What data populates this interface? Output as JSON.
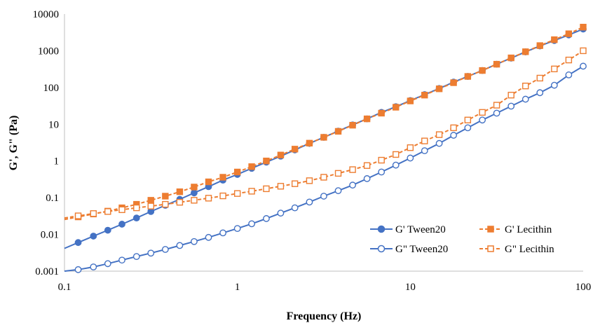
{
  "chart_data": {
    "type": "line",
    "xlabel": "Frequency (Hz)",
    "ylabel": "G', G\" (Pa)",
    "x_scale": "log",
    "y_scale": "log",
    "xlim": [
      0.1,
      100
    ],
    "ylim": [
      0.001,
      10000
    ],
    "x_ticks": [
      "0.1",
      "1",
      "10",
      "100"
    ],
    "y_ticks": [
      "0.001",
      "0.01",
      "0.1",
      "1",
      "10",
      "100",
      "1000",
      "10000"
    ],
    "grid": false,
    "legend_position": "bottom-right",
    "series": [
      {
        "name": "G' Tween20",
        "color": "#4472C4",
        "line": "solid",
        "marker": "circle-filled",
        "x": [
          0.12,
          0.147,
          0.178,
          0.215,
          0.261,
          0.316,
          0.383,
          0.464,
          0.562,
          0.681,
          0.825,
          1.0,
          1.21,
          1.47,
          1.78,
          2.15,
          2.61,
          3.16,
          3.83,
          4.64,
          5.62,
          6.81,
          8.25,
          10.0,
          12.1,
          14.7,
          17.8,
          21.5,
          26.1,
          31.6,
          38.3,
          46.4,
          56.2,
          68.1,
          82.5,
          100
        ],
        "y": [
          0.006,
          0.009,
          0.013,
          0.019,
          0.028,
          0.042,
          0.062,
          0.09,
          0.135,
          0.2,
          0.3,
          0.43,
          0.63,
          0.93,
          1.35,
          2.0,
          3.0,
          4.4,
          6.5,
          9.6,
          14,
          21,
          30,
          44,
          64,
          94,
          140,
          200,
          290,
          430,
          630,
          930,
          1350,
          1900,
          2700,
          3900
        ]
      },
      {
        "name": "G' Lecithin",
        "color": "#ED7D31",
        "line": "dashed",
        "marker": "square-filled",
        "x": [
          0.12,
          0.147,
          0.178,
          0.215,
          0.261,
          0.316,
          0.383,
          0.464,
          0.562,
          0.681,
          0.825,
          1.0,
          1.21,
          1.47,
          1.78,
          2.15,
          2.61,
          3.16,
          3.83,
          4.64,
          5.62,
          6.81,
          8.25,
          10.0,
          12.1,
          14.7,
          17.8,
          21.5,
          26.1,
          31.6,
          38.3,
          46.4,
          56.2,
          68.1,
          82.5,
          100
        ],
        "y": [
          0.03,
          0.036,
          0.043,
          0.053,
          0.066,
          0.085,
          0.11,
          0.145,
          0.195,
          0.27,
          0.36,
          0.5,
          0.7,
          1.0,
          1.45,
          2.1,
          3.05,
          4.4,
          6.4,
          9.4,
          14,
          20,
          29,
          43,
          62,
          92,
          135,
          200,
          290,
          430,
          640,
          940,
          1380,
          2000,
          2900,
          4400
        ]
      },
      {
        "name": "G\" Tween20",
        "color": "#4472C4",
        "line": "solid",
        "marker": "circle-open",
        "x": [
          0.12,
          0.147,
          0.178,
          0.215,
          0.261,
          0.316,
          0.383,
          0.464,
          0.562,
          0.681,
          0.825,
          1.0,
          1.21,
          1.47,
          1.78,
          2.15,
          2.61,
          3.16,
          3.83,
          4.64,
          5.62,
          6.81,
          8.25,
          10.0,
          12.1,
          14.7,
          17.8,
          21.5,
          26.1,
          31.6,
          38.3,
          46.4,
          56.2,
          68.1,
          82.5,
          100
        ],
        "y": [
          0.0011,
          0.0013,
          0.0016,
          0.002,
          0.0025,
          0.0031,
          0.0039,
          0.005,
          0.0064,
          0.0083,
          0.011,
          0.0145,
          0.0195,
          0.027,
          0.038,
          0.053,
          0.076,
          0.11,
          0.155,
          0.22,
          0.33,
          0.5,
          0.77,
          1.2,
          1.9,
          3.0,
          5.0,
          8.0,
          13,
          20,
          31,
          48,
          72,
          115,
          220,
          380
        ]
      },
      {
        "name": "G\" Lecithin",
        "color": "#ED7D31",
        "line": "dashed",
        "marker": "square-open",
        "x": [
          0.12,
          0.147,
          0.178,
          0.215,
          0.261,
          0.316,
          0.383,
          0.464,
          0.562,
          0.681,
          0.825,
          1.0,
          1.21,
          1.47,
          1.78,
          2.15,
          2.61,
          3.16,
          3.83,
          4.64,
          5.62,
          6.81,
          8.25,
          10.0,
          12.1,
          14.7,
          17.8,
          21.5,
          26.1,
          31.6,
          38.3,
          46.4,
          56.2,
          68.1,
          82.5,
          100
        ],
        "y": [
          0.032,
          0.037,
          0.042,
          0.047,
          0.053,
          0.059,
          0.066,
          0.075,
          0.085,
          0.097,
          0.112,
          0.13,
          0.15,
          0.175,
          0.205,
          0.24,
          0.29,
          0.36,
          0.46,
          0.58,
          0.75,
          1.05,
          1.5,
          2.3,
          3.5,
          5.2,
          8.0,
          13,
          21,
          33,
          62,
          110,
          180,
          320,
          560,
          1000
        ]
      }
    ]
  }
}
